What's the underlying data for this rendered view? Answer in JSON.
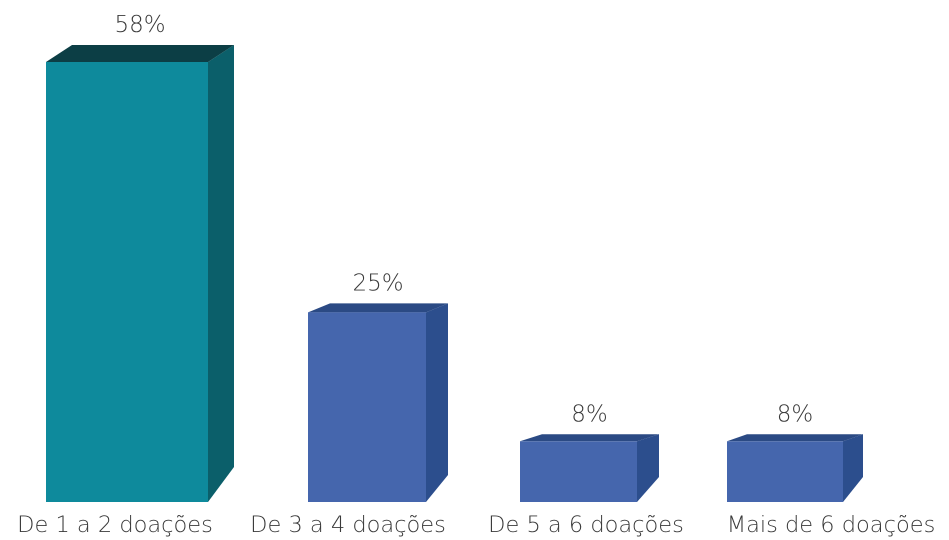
{
  "chart_data": {
    "type": "bar",
    "categories": [
      "De 1 a 2 doações",
      "De 3 a 4 doações",
      "De 5 a 6 doações",
      "Mais de 6 doações"
    ],
    "values": [
      58,
      25,
      8,
      8
    ],
    "value_labels": [
      "58%",
      "25%",
      "8%",
      "8%"
    ],
    "unit": "%",
    "title": "",
    "xlabel": "",
    "ylabel": "",
    "ylim": [
      0,
      58
    ],
    "grid": false,
    "legend": "none",
    "bar_colors": [
      "#0e8a9c",
      "#4566ad",
      "#4566ad",
      "#4566ad"
    ],
    "side_colors": [
      "#0b5f6a",
      "#2c4e8d",
      "#2c4e8d",
      "#2c4e8d"
    ],
    "top_colors": [
      "#0c3e45",
      "#2b4a84",
      "#2b4a84",
      "#2b4a84"
    ]
  }
}
